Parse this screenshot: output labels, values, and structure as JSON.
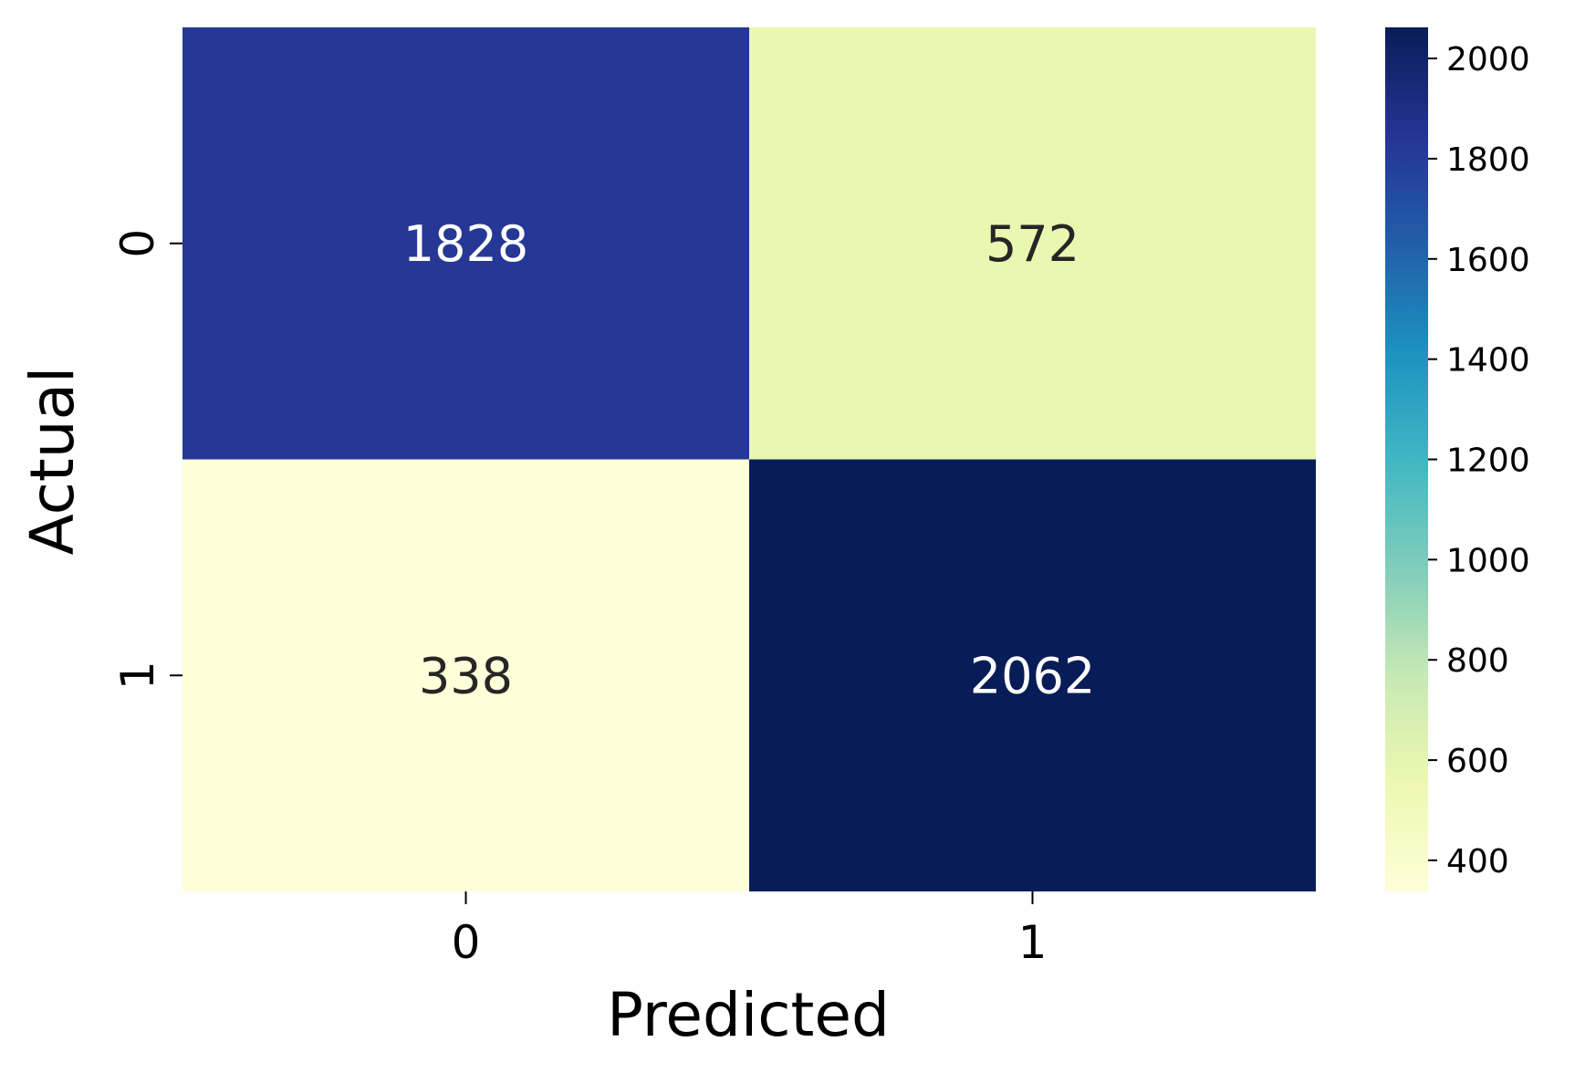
{
  "chart_data": {
    "type": "heatmap",
    "title": "",
    "xlabel": "Predicted",
    "ylabel": "Actual",
    "x_categories": [
      "0",
      "1"
    ],
    "y_categories": [
      "0",
      "1"
    ],
    "values": [
      [
        1828,
        572
      ],
      [
        338,
        2062
      ]
    ],
    "colormap": "YlGnBu",
    "colorbar": {
      "min": 338,
      "max": 2062,
      "ticks": [
        400,
        600,
        800,
        1000,
        1200,
        1400,
        1600,
        1800,
        2000
      ]
    },
    "colors": {
      "stops": [
        "#ffffd9",
        "#edf8b1",
        "#c7e9b4",
        "#7fcdbb",
        "#41b6c4",
        "#1d91c0",
        "#225ea8",
        "#253494",
        "#081d58"
      ],
      "dark_text": "#262626",
      "light_text": "#ffffff"
    }
  }
}
